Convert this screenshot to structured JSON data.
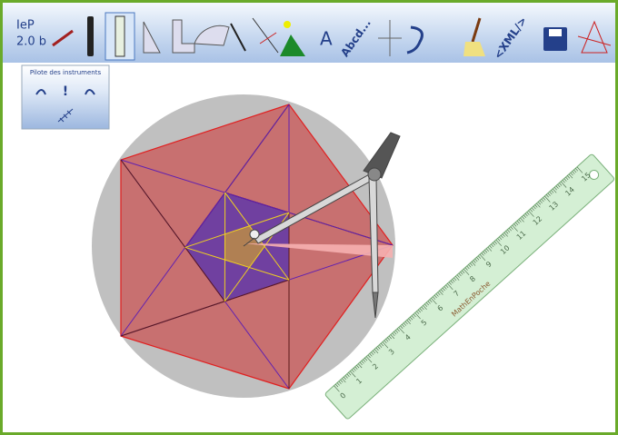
{
  "app": {
    "name": "IeP",
    "version": "2.0 b"
  },
  "toolbar": {
    "text_tool": "A",
    "label_tool": "Abcd...",
    "xml_tool": "<XML/>"
  },
  "pilot": {
    "title": "Pilote des instruments",
    "reset": "!"
  },
  "ruler": {
    "brand": "MathEnPoche",
    "numbers": [
      0,
      1,
      2,
      3,
      4,
      5,
      6,
      7,
      8,
      9,
      10,
      11,
      12,
      13,
      14,
      15
    ]
  }
}
